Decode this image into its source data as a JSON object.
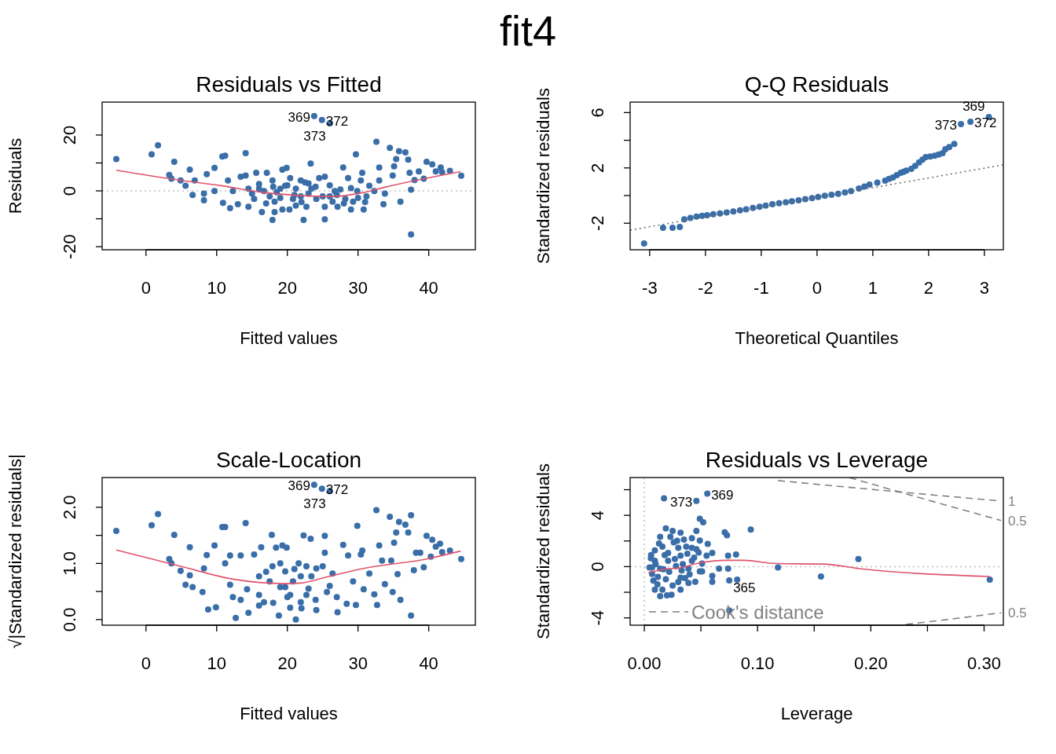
{
  "chart_data": [
    {
      "type": "scatter",
      "title": "Residuals vs Fitted",
      "xlabel": "Fitted values",
      "ylabel": "Residuals",
      "marker": "circle",
      "xlim": [
        -6.2,
        46.6
      ],
      "ylim": [
        -21.1,
        31.8
      ],
      "xticks": [
        0,
        10,
        20,
        30,
        40
      ],
      "yticks": [
        -20,
        {
          "value": -10,
          "label": null
        },
        0,
        {
          "value": 10,
          "label": null
        },
        20
      ],
      "series": [
        {
          "color": "#3a6ea8",
          "x": [
            -4.2,
            0.8,
            1.7,
            4.0,
            3.3,
            3.6,
            4.9,
            6.2,
            5.6,
            6.6,
            6.9,
            8.2,
            8.2,
            8.6,
            9.7,
            9.7,
            10.8,
            11.2,
            10.9,
            11.9,
            11.6,
            12.3,
            13.0,
            13.4,
            14.1,
            14.1,
            14.5,
            15.6,
            16.0,
            16.4,
            17.1,
            17.5,
            17.9,
            18.2,
            19.3,
            19.9,
            19.3,
            20.3,
            19.7,
            20.8,
            21.9,
            22.3,
            23.3,
            23.4,
            22.7,
            24.5,
            25.3,
            25.3,
            25.3,
            26.0,
            26.7,
            27.1,
            27.9,
            28.6,
            29.0,
            29.7,
            29.9,
            30.6,
            30.8,
            31.6,
            32.6,
            33.0,
            33.0,
            33.6,
            34.5,
            34.9,
            35.1,
            35.4,
            35.8,
            36.7,
            37.1,
            37.3,
            37.5,
            37.5,
            36.0,
            38.0,
            38.6,
            39.3,
            39.7,
            40.5,
            41.0,
            41.7,
            41.9,
            43.0,
            44.6,
            16.7,
            19.0,
            21.2,
            21.9,
            24.1,
            26.4,
            28.2,
            29.3,
            31.2,
            32.3,
            33.8,
            14.5,
            15.3,
            17.9,
            20.4,
            23.0,
            18.2,
            21.2,
            30.4,
            15.0,
            16.0,
            17.0,
            18.0,
            19.0,
            20.0,
            21.0,
            22.0,
            23.0,
            24.0,
            25.0,
            26.0,
            27.0,
            28.0,
            29.0,
            30.0,
            31.0,
            22.5,
            18.5,
            27.5,
            23.8,
            24.9,
            26.0
          ],
          "values": [
            11.4,
            13.1,
            16.3,
            10.4,
            5.7,
            4.4,
            3.7,
            7.6,
            1.8,
            -1.5,
            3.7,
            -1.0,
            -3.4,
            6.0,
            8.2,
            -0.1,
            12.3,
            12.6,
            -4.3,
            -6.2,
            3.7,
            -0.1,
            -4.8,
            5.1,
            13.5,
            5.5,
            -5.7,
            6.5,
            0.8,
            -7.6,
            6.5,
            -2.0,
            -10.4,
            -7.6,
            7.6,
            8.2,
            -6.7,
            -6.7,
            1.8,
            -2.9,
            3.7,
            -10.4,
            9.8,
            0.8,
            -5.7,
            4.6,
            5.1,
            -10.2,
            -5.7,
            -2.0,
            -0.1,
            -5.7,
            8.4,
            4.6,
            -6.7,
            13.1,
            -0.1,
            6.5,
            -6.7,
            1.8,
            17.6,
            8.4,
            3.7,
            -4.8,
            15.4,
            5.5,
            8.8,
            11.4,
            14.2,
            13.8,
            11.2,
            6.5,
            0.4,
            -15.6,
            -3.9,
            3.9,
            7.0,
            4.4,
            10.4,
            9.5,
            7.0,
            8.4,
            6.7,
            7.2,
            5.4,
            -0.1,
            0.8,
            0.8,
            -2.0,
            -2.9,
            -3.9,
            -2.9,
            -3.9,
            -2.0,
            -0.1,
            -1.0,
            0.8,
            -2.9,
            3.7,
            4.6,
            2.7,
            -3.9,
            -5.3,
            3.7,
            -1.0,
            2.5,
            -4.5,
            1.5,
            -2.5,
            2.0,
            -1.5,
            -4.0,
            -1.0,
            1.5,
            -2.0,
            2.0,
            -1.5,
            -4.5,
            1.0,
            -2.5,
            -4.0,
            3.0,
            -0.5,
            0.5,
            26.8,
            25.4,
            24.2
          ]
        },
        {
          "type": "line",
          "marker": "none",
          "color": "#df536b",
          "x": [
            -4.2,
            4.9,
            10.8,
            16.7,
            26.4,
            30.8,
            33.8,
            44.5
          ],
          "values": [
            7.4,
            3.8,
            1.8,
            -0.6,
            -2.0,
            -0.6,
            1.3,
            6.9
          ]
        }
      ],
      "ref_lines": [
        {
          "axis": "y",
          "value": 0,
          "color": "#bebebe",
          "line_style": "dotted"
        }
      ],
      "annotations": [
        "fit4",
        {
          "text": "369",
          "x": 23.8,
          "y": 26.8
        },
        {
          "text": "372",
          "x": 24.9,
          "y": 25.4
        },
        {
          "text": "373",
          "x": 26.0,
          "y": 24.2
        }
      ]
    },
    {
      "type": "scatter",
      "title": "Q-Q Residuals",
      "xlabel": "Theoretical Quantiles",
      "ylabel": "Standardized residuals",
      "marker": "circle",
      "xlim": [
        -3.35,
        3.34
      ],
      "ylim": [
        -3.92,
        6.76
      ],
      "xticks": [
        -3,
        -2,
        -1,
        0,
        1,
        2,
        3
      ],
      "yticks": [
        -2,
        {
          "value": 0,
          "label": null
        },
        2,
        {
          "value": 4,
          "label": null
        },
        6
      ],
      "series": [
        {
          "color": "#3a6ea8",
          "x": [
            -3.1,
            -2.76,
            -2.59,
            -2.46,
            -2.38,
            -2.16,
            -1.97,
            -1.74,
            -1.5,
            -1.27,
            -1.03,
            -0.8,
            -0.56,
            -0.33,
            -0.09,
            0.14,
            0.38,
            0.61,
            0.75,
            0.94,
            1.22,
            1.36,
            1.5,
            1.6,
            1.69,
            1.83,
            1.95,
            2.11,
            2.25,
            2.3,
            2.37,
            2.46,
            2.58,
            2.75,
            3.08,
            -2.27,
            -2.06,
            -1.86,
            -1.62,
            -1.38,
            -1.15,
            -0.92,
            -0.68,
            -0.45,
            -0.21,
            0.02,
            0.26,
            0.5,
            0.85,
            1.08,
            1.29,
            1.43,
            1.55,
            1.76,
            1.89,
            2.03,
            2.18
          ],
          "values": [
            -3.47,
            -2.33,
            -2.33,
            -2.27,
            -1.72,
            -1.52,
            -1.42,
            -1.29,
            -1.15,
            -1.0,
            -0.81,
            -0.63,
            -0.49,
            -0.34,
            -0.19,
            -0.02,
            0.13,
            0.32,
            0.51,
            0.8,
            1.08,
            1.31,
            1.65,
            1.8,
            1.93,
            2.4,
            2.78,
            2.88,
            3.07,
            3.35,
            3.51,
            3.73,
            5.17,
            5.34,
            5.68,
            -1.62,
            -1.47,
            -1.35,
            -1.22,
            -1.07,
            -0.9,
            -0.72,
            -0.56,
            -0.41,
            -0.26,
            -0.1,
            0.05,
            0.22,
            0.65,
            0.94,
            1.2,
            1.48,
            1.72,
            2.15,
            2.6,
            2.83,
            2.97
          ]
        },
        {
          "type": "line",
          "marker": "none",
          "color": "#6e6e6e",
          "line_style": "dotted",
          "x": [
            -3.35,
            3.34
          ],
          "values": [
            -2.5,
            2.22
          ]
        }
      ],
      "annotations": [
        {
          "text": "373",
          "x": 2.58,
          "y": 5.17
        },
        {
          "text": "372",
          "x": 2.75,
          "y": 5.34
        },
        {
          "text": "369",
          "x": 3.08,
          "y": 5.68
        }
      ]
    },
    {
      "type": "scatter",
      "title": "Scale-Location",
      "xlabel": "Fitted values",
      "ylabel": "√|Standardized residuals|",
      "marker": "circle",
      "xlim": [
        -6.2,
        46.6
      ],
      "ylim": [
        -0.1,
        2.53
      ],
      "xticks": [
        0,
        10,
        20,
        30,
        40
      ],
      "yticks": [
        {
          "value": 0,
          "label": "0.0"
        },
        {
          "value": 0.5,
          "label": null
        },
        {
          "value": 1,
          "label": "1.0"
        },
        {
          "value": 1.5,
          "label": null
        },
        {
          "value": 2,
          "label": "2.0"
        }
      ],
      "series": [
        {
          "color": "#3a6ea8",
          "x": [
            -4.2,
            0.8,
            1.7,
            4.0,
            3.3,
            3.6,
            4.9,
            6.2,
            5.6,
            6.6,
            6.2,
            8.0,
            8.2,
            8.6,
            8.8,
            9.7,
            9.9,
            10.8,
            11.2,
            11.2,
            11.9,
            11.9,
            12.3,
            12.7,
            13.4,
            13.4,
            14.1,
            14.3,
            14.5,
            15.3,
            16.0,
            16.3,
            16.7,
            17.8,
            17.9,
            18.4,
            18.8,
            19.3,
            19.9,
            19.7,
            20.4,
            21.2,
            21.6,
            22.3,
            22.7,
            23.3,
            23.4,
            24.1,
            25.3,
            25.3,
            25.6,
            26.4,
            27.1,
            27.9,
            28.4,
            28.6,
            29.3,
            29.7,
            29.9,
            30.4,
            30.6,
            30.8,
            31.6,
            32.3,
            32.6,
            32.7,
            33.0,
            33.4,
            33.8,
            34.5,
            34.7,
            34.9,
            35.1,
            35.4,
            35.6,
            35.8,
            36.0,
            36.7,
            37.1,
            37.5,
            37.5,
            37.9,
            38.2,
            38.8,
            39.3,
            39.7,
            40.3,
            40.5,
            41.0,
            41.6,
            41.9,
            43.0,
            44.6,
            19.7,
            20.8,
            21.9,
            20.4,
            22.7,
            17.5,
            19.0,
            24.1,
            16.0,
            21.9,
            18,
            19,
            20,
            21,
            22,
            23,
            24,
            25,
            26,
            27,
            17,
            16,
            23.8,
            24.9,
            26.0
          ],
          "values": [
            1.58,
            1.68,
            1.88,
            1.51,
            1.08,
            1.0,
            0.87,
            1.29,
            0.62,
            0.58,
            0.79,
            0.49,
            0.91,
            1.15,
            0.18,
            1.32,
            0.22,
            1.65,
            1.65,
            1.0,
            0.62,
            1.14,
            0.4,
            0.03,
            1.14,
            0.35,
            1.72,
            0.54,
            0.12,
            1.16,
            0.77,
            1.29,
            0.31,
            1.51,
            0.95,
            1.28,
            0.07,
            1.32,
            1.28,
            0.58,
            0.21,
            0.0,
            1.0,
            1.5,
            0.44,
            1.44,
            0.77,
            0.17,
            1.49,
            1.19,
            0.49,
            0.82,
            0.13,
            1.33,
            0.28,
            1.14,
            0.68,
            0.26,
            1.67,
            1.16,
            1.23,
            0.54,
            0.82,
            0.45,
            1.95,
            0.26,
            1.32,
            1.05,
            0.63,
            1.83,
            1.05,
            0.49,
            1.37,
            1.55,
            0.81,
            1.74,
            0.35,
            1.69,
            1.55,
            1.86,
            0.07,
            0.88,
            1.19,
            1.19,
            0.93,
            1.49,
            1.12,
            1.42,
            1.3,
            1.35,
            1.2,
            1.23,
            1.08,
            0.86,
            0.68,
            0.77,
            0.44,
            0.95,
            0.68,
            0.58,
            0.91,
            0.44,
            0.31,
            0.3,
            1.0,
            0.4,
            0.9,
            0.2,
            0.55,
            0.35,
            0.95,
            0.6,
            0.4,
            0.85,
            0.25,
            2.4,
            2.33,
            2.29
          ]
        },
        {
          "type": "line",
          "marker": "none",
          "color": "#df536b",
          "x": [
            -4.2,
            4.9,
            12.3,
            19.7,
            21.9,
            25.3,
            30.8,
            40.1,
            44.5
          ],
          "values": [
            1.24,
            0.95,
            0.72,
            0.64,
            0.65,
            0.75,
            0.91,
            1.09,
            1.22
          ]
        }
      ],
      "annotations": [
        {
          "text": "369",
          "x": 23.8,
          "y": 2.4
        },
        {
          "text": "372",
          "x": 24.9,
          "y": 2.33
        },
        {
          "text": "373",
          "x": 26.0,
          "y": 2.29
        }
      ]
    },
    {
      "type": "scatter",
      "title": "Residuals vs Leverage",
      "xlabel": "Leverage",
      "ylabel": "Standardized residuals",
      "marker": "circle",
      "xlim": [
        -0.0125,
        0.317
      ],
      "ylim": [
        -4.57,
        6.95
      ],
      "xticks": [
        {
          "value": 0,
          "label": "0.00"
        },
        {
          "value": 0.05,
          "label": null
        },
        {
          "value": 0.1,
          "label": "0.10"
        },
        {
          "value": 0.15,
          "label": null
        },
        {
          "value": 0.2,
          "label": "0.20"
        },
        {
          "value": 0.25,
          "label": null
        },
        {
          "value": 0.3,
          "label": "0.30"
        }
      ],
      "yticks": [
        -4,
        {
          "value": -2,
          "label": null
        },
        0,
        {
          "value": 2,
          "label": null
        },
        4,
        {
          "value": 6,
          "label": null
        }
      ],
      "series": [
        {
          "color": "#3a6ea8",
          "x": [
            0.0174,
            0.046,
            0.0556,
            0.075,
            0.049,
            0.052,
            0.019,
            0.025,
            0.032,
            0.014,
            0.023,
            0.046,
            0.042,
            0.029,
            0.035,
            0.049,
            0.056,
            0.071,
            0.073,
            0.094,
            0.0093,
            0.016,
            0.037,
            0.046,
            0.06,
            0.055,
            0.074,
            0.081,
            0.0058,
            0.021,
            0.032,
            0.042,
            0.051,
            0.0046,
            0.014,
            0.028,
            0.039,
            0.049,
            0.066,
            0.074,
            0.118,
            0.189,
            0.156,
            0.305,
            0.06,
            0.06,
            0.075,
            0.082,
            0.0069,
            0.019,
            0.032,
            0.045,
            0.0116,
            0.025,
            0.039,
            0.014,
            0.02,
            0.024,
            0.0093,
            0.016,
            0.032,
            0.051,
            0.0093,
            0.021,
            0.03,
            0.042,
            0.0069,
            0.01,
            0.012,
            0.018,
            0.022,
            0.027,
            0.03,
            0.034,
            0.038,
            0.04,
            0.044,
            0.008,
            0.006,
            0.013,
            0.026,
            0.033,
            0.017,
            0.048,
            0.036
          ],
          "values": [
            5.32,
            5.12,
            5.69,
            -3.42,
            3.74,
            3.45,
            2.99,
            2.78,
            2.64,
            2.32,
            2.32,
            2.78,
            2.21,
            2.01,
            2.11,
            2.03,
            1.77,
            2.68,
            2.44,
            2.89,
            1.26,
            1.56,
            1.56,
            1.36,
            1.06,
            0.85,
            0.85,
            0.95,
            0.65,
            0.45,
            0.85,
            0.45,
            0.24,
            -0.06,
            -0.16,
            0.04,
            -0.16,
            -0.37,
            -0.16,
            -0.16,
            -0.06,
            0.59,
            -0.77,
            -1.02,
            -0.73,
            -1.18,
            -1.08,
            -1.02,
            -0.57,
            -0.98,
            -0.87,
            -1.18,
            -1.38,
            -1.48,
            -1.28,
            -2.3,
            -2.24,
            -2.2,
            -1.79,
            -1.79,
            -1.79,
            -0.37,
            0.45,
            1.06,
            1.46,
            1.46,
            -0.06,
            0.2,
            -0.8,
            0.9,
            -0.4,
            0.6,
            -1.2,
            0.2,
            1.0,
            -0.6,
            0.7,
            -1.1,
            0.9,
            1.8,
            1.9,
            -0.3,
            -0.2,
            1.1,
            -0.9
          ]
        },
        {
          "type": "line",
          "marker": "none",
          "color": "#df536b",
          "x": [
            0.0035,
            0.021,
            0.03,
            0.046,
            0.074,
            0.088,
            0.116,
            0.158,
            0.19,
            0.305
          ],
          "values": [
            -0.47,
            -0.16,
            -0.12,
            0.24,
            0.49,
            0.49,
            0.24,
            0.2,
            -0.16,
            -0.77
          ]
        },
        {
          "type": "line",
          "marker": "none",
          "name": "1",
          "color": "#808080",
          "line_style": "dashed",
          "x": [
            0.118,
            0.215,
            0.315
          ],
          "values": [
            6.71,
            5.91,
            5.12
          ]
        },
        {
          "type": "line",
          "marker": "none",
          "name": "0.5",
          "color": "#808080",
          "line_style": "dashed",
          "x": [
            0.181,
            0.229,
            0.315
          ],
          "values": [
            6.95,
            5.73,
            3.6
          ]
        },
        {
          "type": "line",
          "marker": "none",
          "name": "0.5",
          "color": "#808080",
          "line_style": "dashed",
          "x": [
            0.231,
            0.271,
            0.315
          ],
          "values": [
            -4.51,
            -4.09,
            -3.6
          ]
        }
      ],
      "ref_lines": [
        {
          "axis": "x",
          "value": 0,
          "color": "#bebebe",
          "line_style": "dotted"
        },
        {
          "axis": "y",
          "value": 0,
          "color": "#bebebe",
          "line_style": "dotted"
        }
      ],
      "annotations": [
        "Cook's distance",
        {
          "text": "369",
          "x": 0.0556,
          "y": 5.69
        },
        {
          "text": "373",
          "x": 0.046,
          "y": 5.12
        },
        {
          "text": "365",
          "x": 0.075,
          "y": -3.42
        }
      ]
    }
  ]
}
